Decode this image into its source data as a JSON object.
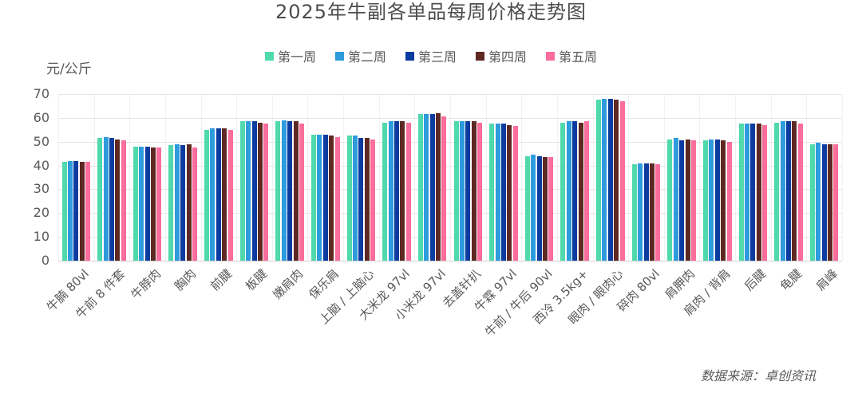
{
  "source_note": "数据来源：卓创资讯",
  "chart_data": {
    "type": "bar",
    "title": "2025年牛副各单品每周价格走势图",
    "ylabel": "元/公斤",
    "xlabel": "",
    "ylim": [
      0,
      70
    ],
    "ytick_interval": 10,
    "grid": true,
    "legend_position": "top",
    "categories": [
      "牛腩 80vl",
      "牛前 8 件套",
      "牛脖肉",
      "胸肉",
      "前腱",
      "板腱",
      "嫩肩肉",
      "保乐肩",
      "上脑 / 上脑心",
      "大米龙 97vl",
      "小米龙 97vl",
      "去盖针扒",
      "牛霖 97vl",
      "牛前 / 牛后 90vl",
      "西冷 3.5kg+",
      "眼肉 / 眼肉心",
      "碎肉 80vl",
      "肩胛肉",
      "肩肉 / 背肩",
      "后腱",
      "龟腱",
      "肩峰"
    ],
    "series": [
      {
        "name": "第一周",
        "color": "#4fd9ad",
        "values": [
          41.5,
          51.5,
          48,
          48.5,
          55,
          58.5,
          58.5,
          53,
          52.5,
          58,
          61.5,
          58.5,
          57.5,
          44,
          58,
          67.5,
          40.5,
          51,
          50.5,
          57.5,
          58,
          49
        ]
      },
      {
        "name": "第二周",
        "color": "#2e9bdc",
        "values": [
          42,
          52,
          48,
          49,
          55.5,
          58.5,
          59,
          53,
          52.5,
          58.5,
          61.5,
          58.5,
          57.5,
          44.5,
          58.5,
          68,
          41,
          51.5,
          51,
          57.5,
          58.5,
          49.5
        ]
      },
      {
        "name": "第三周",
        "color": "#0c3ca0",
        "values": [
          42,
          51.5,
          48,
          48.5,
          55.5,
          58.5,
          58.5,
          53,
          51.5,
          58.5,
          61.5,
          58.5,
          57.5,
          44,
          58.5,
          68,
          41,
          50.5,
          51,
          57.5,
          58.5,
          49
        ]
      },
      {
        "name": "第四周",
        "color": "#5e2823",
        "values": [
          41.5,
          51,
          47.5,
          49,
          55.5,
          58,
          58.5,
          52.5,
          51.5,
          58.5,
          62,
          58.5,
          57,
          43.5,
          58,
          67.5,
          41,
          51,
          50.5,
          57.5,
          58.5,
          49
        ]
      },
      {
        "name": "第五周",
        "color": "#fb6d9b",
        "values": [
          41.5,
          50.5,
          47.5,
          47.5,
          55,
          57.5,
          57.5,
          52,
          51,
          58,
          60.5,
          58,
          56.5,
          43.5,
          58.5,
          67,
          40.5,
          50.5,
          50,
          57,
          57.5,
          49
        ]
      }
    ],
    "colors": {
      "title_text": "#4d4d4d",
      "axis_text": "#595959",
      "gridline": "#e6e6e6"
    }
  }
}
